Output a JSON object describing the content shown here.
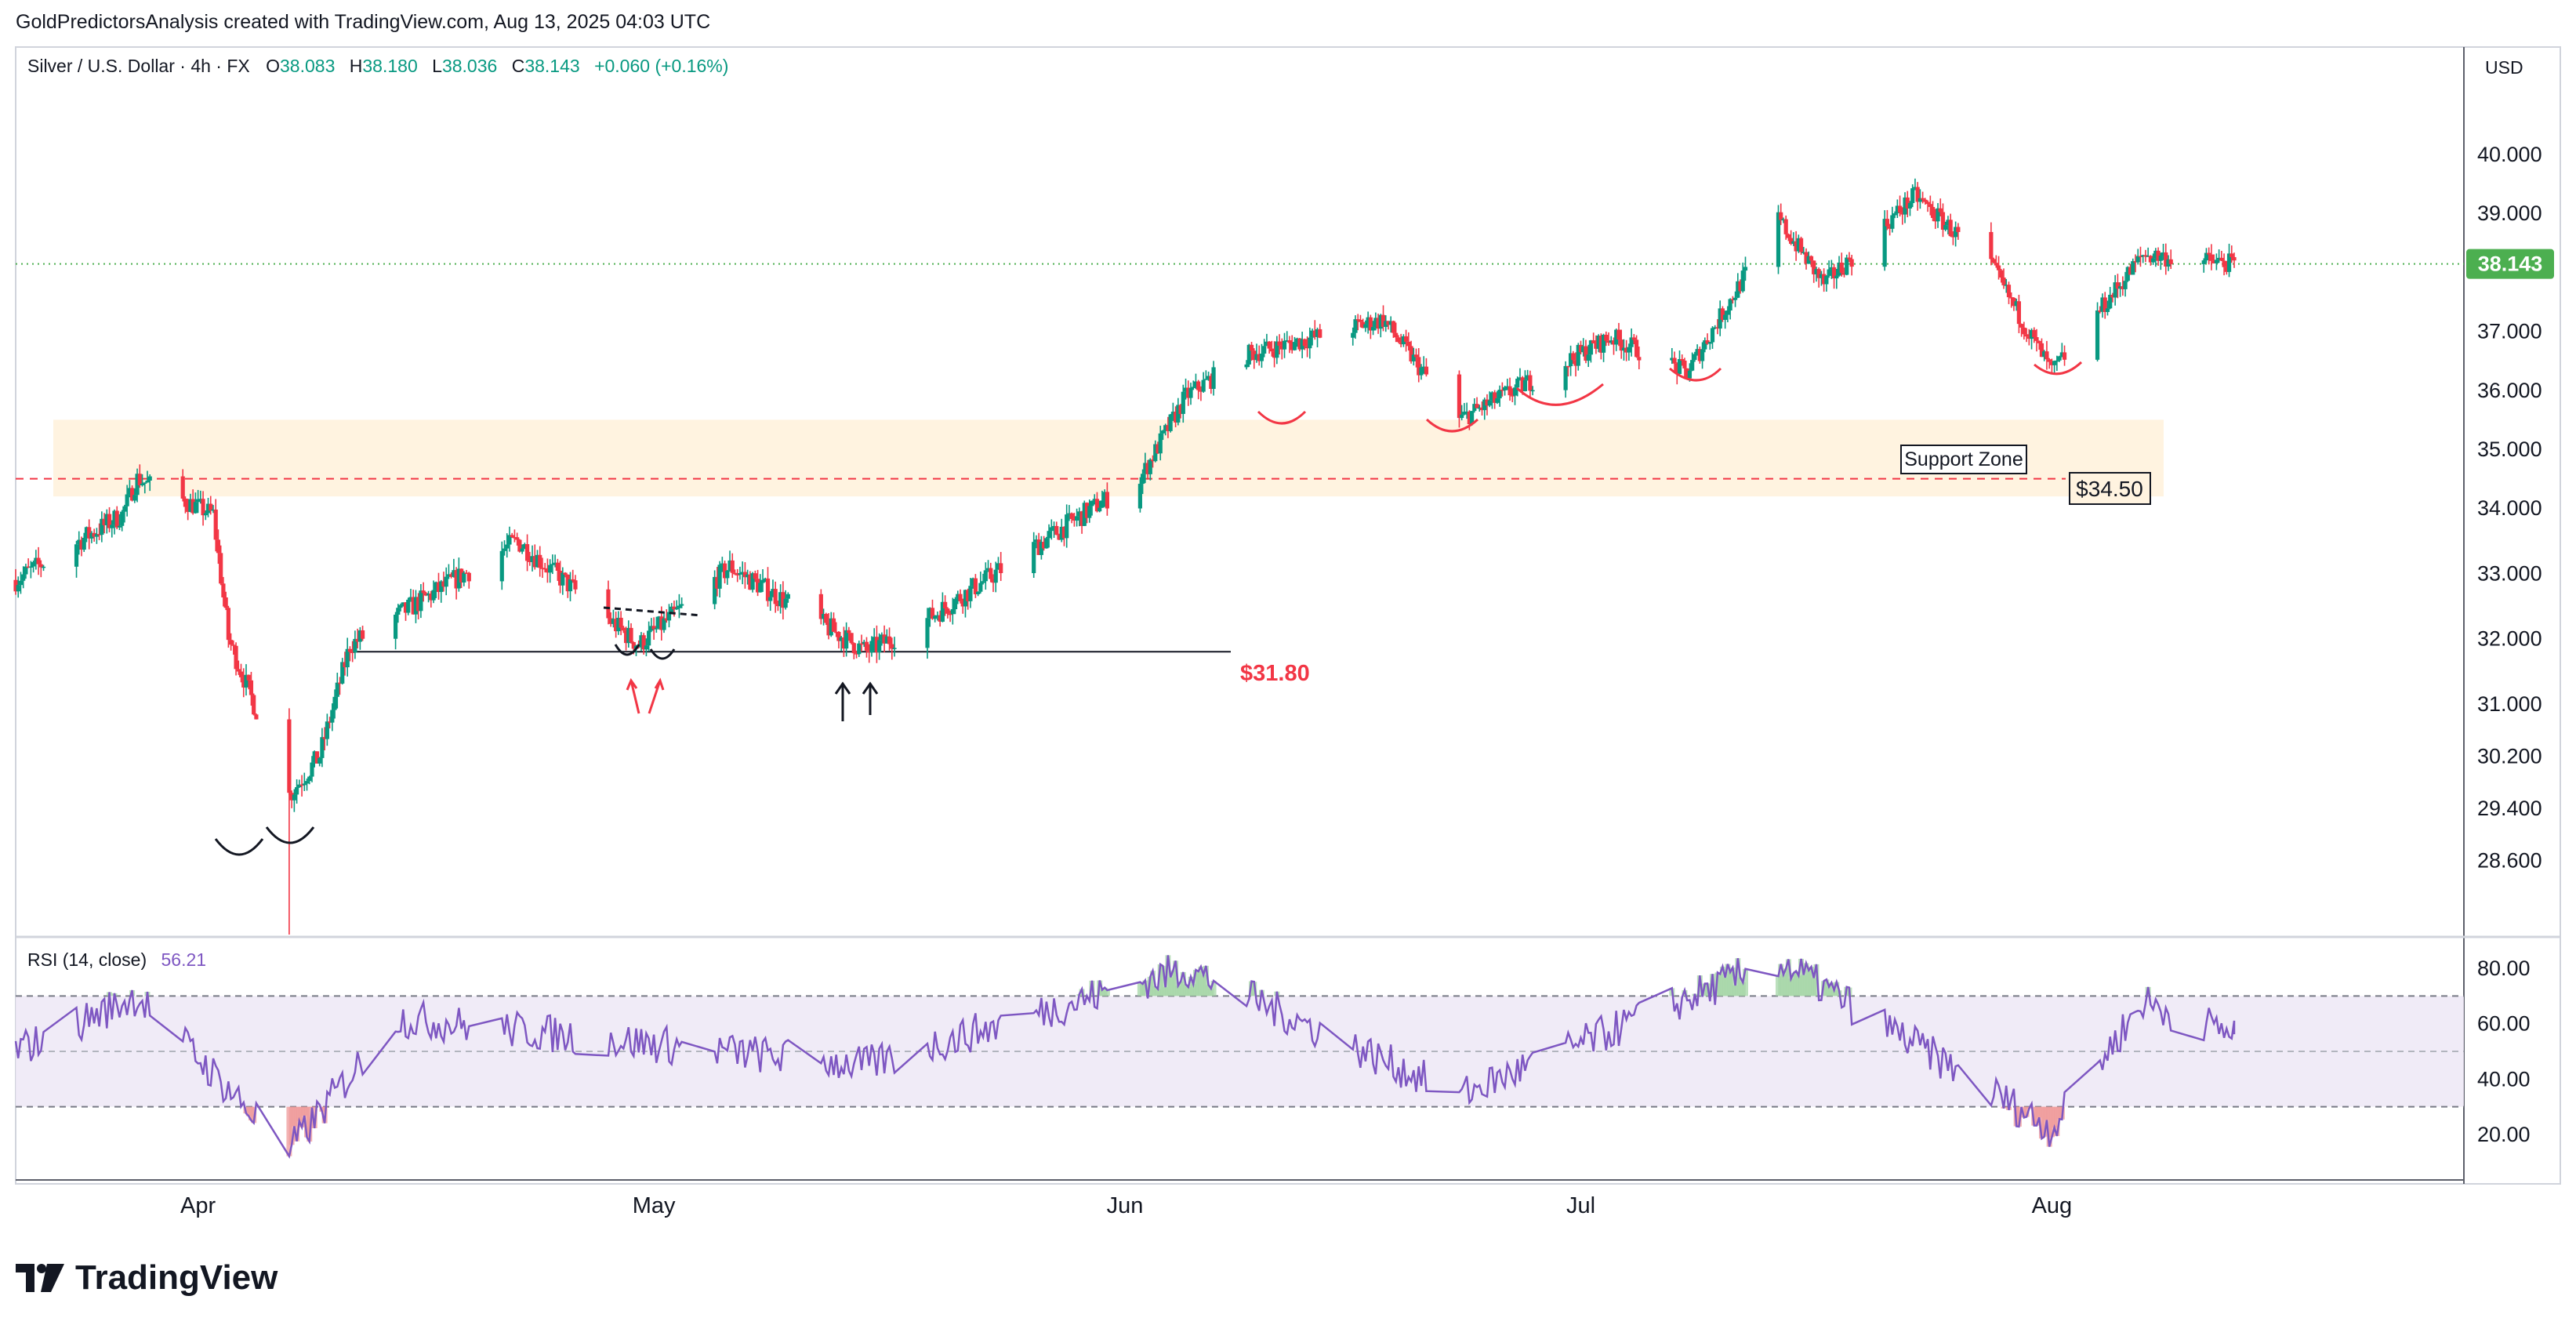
{
  "header": {
    "attribution": "GoldPredictorsAnalysis created with TradingView.com, Aug 13, 2025 04:03 UTC",
    "symbol_line": {
      "name": "Silver / U.S. Dollar · 4h · FX",
      "o_label": "O",
      "o_value": "38.083",
      "h_label": "H",
      "h_value": "38.180",
      "l_label": "L",
      "l_value": "38.036",
      "c_label": "C",
      "c_value": "38.143",
      "change": "+0.060 (+0.16%)"
    },
    "currency": "USD"
  },
  "price_axis": {
    "ticks": [
      "40.000",
      "39.000",
      "37.000",
      "36.000",
      "35.000",
      "34.000",
      "33.000",
      "32.000",
      "31.000",
      "30.200",
      "29.400",
      "28.600"
    ],
    "last_price_label": "38.143"
  },
  "rsi_panel": {
    "title": "RSI (14, close)",
    "value": "56.21",
    "ticks": [
      "80.00",
      "60.00",
      "40.00",
      "20.00"
    ]
  },
  "time_axis": {
    "labels": [
      "Apr",
      "May",
      "Jun",
      "Jul",
      "Aug"
    ]
  },
  "annotations": {
    "support_zone_label": "Support Zone",
    "resistance_label": "$34.50",
    "support_line_label": "$31.80"
  },
  "footer": {
    "brand": "TradingView"
  },
  "colors": {
    "up": "#089981",
    "down": "#f23645",
    "rsi_line": "#7e57c2",
    "last_price": "#4caf50",
    "zone_fill": "#fff3e0",
    "annotation_red": "#f23645"
  },
  "chart_data": {
    "type": "candlestick",
    "symbol": "Silver / U.S. Dollar",
    "timeframe": "4h",
    "last_close": 38.143,
    "price_key_points": [
      {
        "date": "2025-03-20",
        "price": 32.9
      },
      {
        "date": "2025-03-27",
        "price": 33.9
      },
      {
        "date": "2025-03-28",
        "price": 34.5
      },
      {
        "date": "2025-04-02",
        "price": 33.9
      },
      {
        "date": "2025-04-03",
        "price": 32.0
      },
      {
        "date": "2025-04-07",
        "price": 29.6
      },
      {
        "date": "2025-04-09",
        "price": 30.2
      },
      {
        "date": "2025-04-11",
        "price": 31.9
      },
      {
        "date": "2025-04-22",
        "price": 33.5
      },
      {
        "date": "2025-04-30",
        "price": 31.9
      },
      {
        "date": "2025-05-06",
        "price": 33.1
      },
      {
        "date": "2025-05-15",
        "price": 31.8
      },
      {
        "date": "2025-05-19",
        "price": 32.3
      },
      {
        "date": "2025-05-26",
        "price": 33.4
      },
      {
        "date": "2025-06-02",
        "price": 34.5
      },
      {
        "date": "2025-06-05",
        "price": 35.9
      },
      {
        "date": "2025-06-09",
        "price": 36.6
      },
      {
        "date": "2025-06-18",
        "price": 37.2
      },
      {
        "date": "2025-06-23",
        "price": 35.5
      },
      {
        "date": "2025-07-03",
        "price": 36.9
      },
      {
        "date": "2025-07-08",
        "price": 36.3
      },
      {
        "date": "2025-07-14",
        "price": 38.9
      },
      {
        "date": "2025-07-17",
        "price": 37.8
      },
      {
        "date": "2025-07-23",
        "price": 39.3
      },
      {
        "date": "2025-07-28",
        "price": 38.1
      },
      {
        "date": "2025-08-01",
        "price": 36.3
      },
      {
        "date": "2025-08-07",
        "price": 38.3
      },
      {
        "date": "2025-08-13",
        "price": 38.14
      }
    ],
    "rsi": {
      "period": 14,
      "current": 56.21,
      "key_points": [
        {
          "date": "2025-03-20",
          "value": 50
        },
        {
          "date": "2025-03-28",
          "value": 70
        },
        {
          "date": "2025-04-07",
          "value": 14
        },
        {
          "date": "2025-04-14",
          "value": 62
        },
        {
          "date": "2025-05-15",
          "value": 45
        },
        {
          "date": "2025-06-05",
          "value": 80
        },
        {
          "date": "2025-06-23",
          "value": 34
        },
        {
          "date": "2025-07-14",
          "value": 83
        },
        {
          "date": "2025-08-01",
          "value": 22
        },
        {
          "date": "2025-08-07",
          "value": 68
        },
        {
          "date": "2025-08-13",
          "value": 56.21
        }
      ]
    },
    "support_zone": [
      34.2,
      35.5
    ],
    "levels": [
      34.5,
      31.8
    ],
    "y_range": [
      28.3,
      40.6
    ],
    "rsi_range": [
      10,
      90
    ],
    "rsi_bands": [
      30,
      50,
      70
    ],
    "x_range": [
      "2025-03-20",
      "2025-08-13"
    ]
  }
}
